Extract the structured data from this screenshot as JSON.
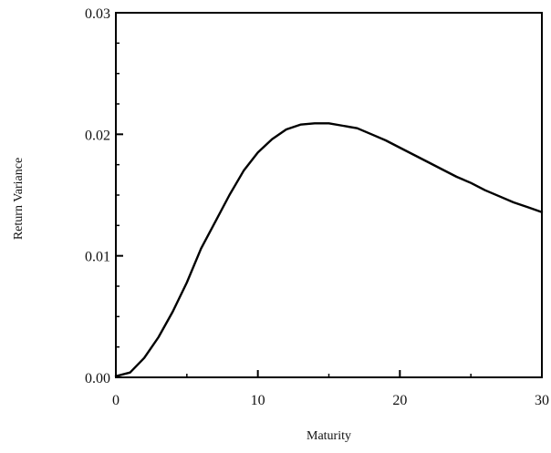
{
  "chart_data": {
    "type": "line",
    "title": "",
    "xlabel": "Maturity",
    "ylabel": "Return Variance",
    "xlim": [
      0,
      30
    ],
    "ylim": [
      0,
      0.03
    ],
    "x_ticks": [
      0,
      10,
      20,
      30
    ],
    "x_tick_labels": [
      "0",
      "10",
      "20",
      "30"
    ],
    "y_ticks": [
      0,
      0.01,
      0.02,
      0.03
    ],
    "y_tick_labels": [
      "0.00",
      "0.01",
      "0.02",
      "0.03"
    ],
    "grid": false,
    "legend": "none",
    "line_color": "#000000",
    "series": [
      {
        "x": [
          0,
          1,
          2,
          3,
          4,
          5,
          6,
          7,
          8,
          9,
          10,
          11,
          12,
          13,
          14,
          15,
          16,
          17,
          18,
          19,
          20,
          21,
          22,
          23,
          24,
          25,
          26,
          27,
          28,
          29,
          30
        ],
        "values": [
          0.0001,
          0.0004,
          0.0016,
          0.0033,
          0.0054,
          0.0078,
          0.0106,
          0.0128,
          0.015,
          0.017,
          0.0185,
          0.0196,
          0.0204,
          0.0208,
          0.0209,
          0.0209,
          0.0207,
          0.0205,
          0.02,
          0.0195,
          0.0189,
          0.0183,
          0.0177,
          0.0171,
          0.0165,
          0.016,
          0.0154,
          0.0149,
          0.0144,
          0.014,
          0.0136
        ]
      }
    ]
  }
}
